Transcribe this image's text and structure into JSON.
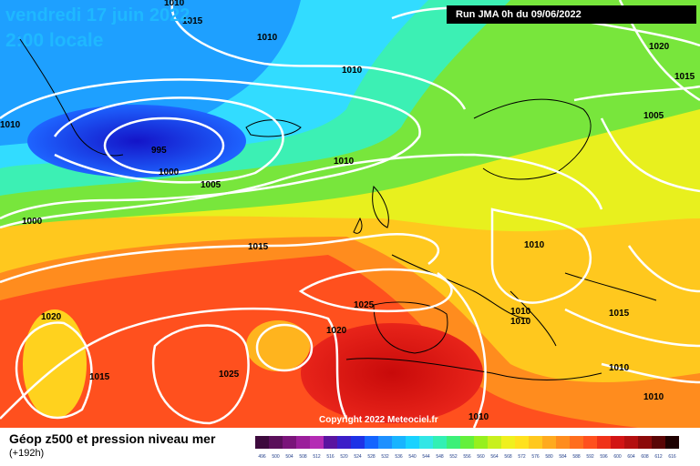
{
  "header": {
    "date": "vendredi 17 juin 2022",
    "local_time": "2:00 locale",
    "run_info": "Run JMA 0h du 09/06/2022"
  },
  "copyright": "Copyright 2022 Meteociel.fr",
  "legend": {
    "title": "Géop z500 et pression niveau mer",
    "subtitle": "(+192h)",
    "scale_values": [
      "496",
      "500",
      "504",
      "508",
      "512",
      "516",
      "520",
      "524",
      "528",
      "532",
      "536",
      "540",
      "544",
      "548",
      "552",
      "556",
      "560",
      "564",
      "568",
      "572",
      "576",
      "580",
      "584",
      "588",
      "592",
      "596",
      "600",
      "604",
      "608",
      "612",
      "616"
    ],
    "scale_colors": [
      "#3d0a3d",
      "#5a0f5a",
      "#7a147a",
      "#9b1e9b",
      "#b42bb4",
      "#5a14a0",
      "#3c1ec8",
      "#1e32e6",
      "#1464ff",
      "#1e90ff",
      "#19b4ff",
      "#19d2ff",
      "#32e6e6",
      "#32f0b4",
      "#3cf078",
      "#64f03c",
      "#96f01e",
      "#c8f01e",
      "#f0f01e",
      "#ffe11e",
      "#ffc81e",
      "#ffaa1e",
      "#ff8c1e",
      "#ff6e1e",
      "#ff501e",
      "#f03219",
      "#d21414",
      "#b40f0f",
      "#8c0a0a",
      "#5a0505",
      "#1e0000"
    ]
  },
  "map": {
    "isobar_labels": [
      "1010",
      "1015",
      "1010",
      "1010",
      "1020",
      "1015",
      "1010",
      "1005",
      "995",
      "1000",
      "1010",
      "1005",
      "1000",
      "1015",
      "1010",
      "1010",
      "1025",
      "1010",
      "1020",
      "1020",
      "1015",
      "1025",
      "1015",
      "1010",
      "1010",
      "1010"
    ]
  }
}
